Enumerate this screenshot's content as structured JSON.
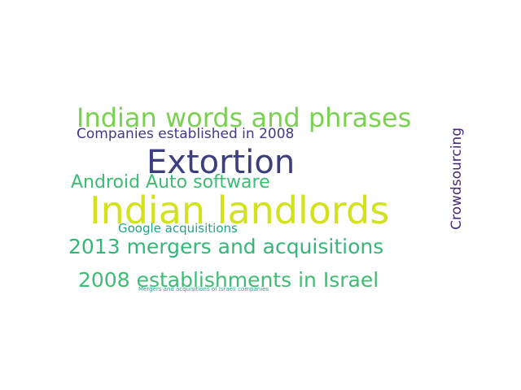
{
  "wordcloud": {
    "words": [
      {
        "id": "indian_words",
        "text": "Indian words and phrases",
        "color": "#7ad151"
      },
      {
        "id": "companies_2008",
        "text": "Companies established in 2008",
        "color": "#443a83"
      },
      {
        "id": "extortion",
        "text": "Extortion",
        "color": "#3b3f7e"
      },
      {
        "id": "android_auto",
        "text": "Android Auto software",
        "color": "#3dbc74"
      },
      {
        "id": "indian_landlords",
        "text": "Indian landlords",
        "color": "#d2e21b"
      },
      {
        "id": "crowdsourcing",
        "text": "Crowdsourcing",
        "color": "#482878"
      },
      {
        "id": "google_acq",
        "text": "Google acquisitions",
        "color": "#21a585"
      },
      {
        "id": "mergers_2013",
        "text": "2013 mergers and acquisitions",
        "color": "#35b779"
      },
      {
        "id": "israel_2008",
        "text": "2008 establishments in Israel",
        "color": "#3fbc73"
      },
      {
        "id": "mergers_israeli",
        "text": "Mergers and acquisitions of Israeli companies",
        "color": "#2a9d8f"
      }
    ]
  }
}
